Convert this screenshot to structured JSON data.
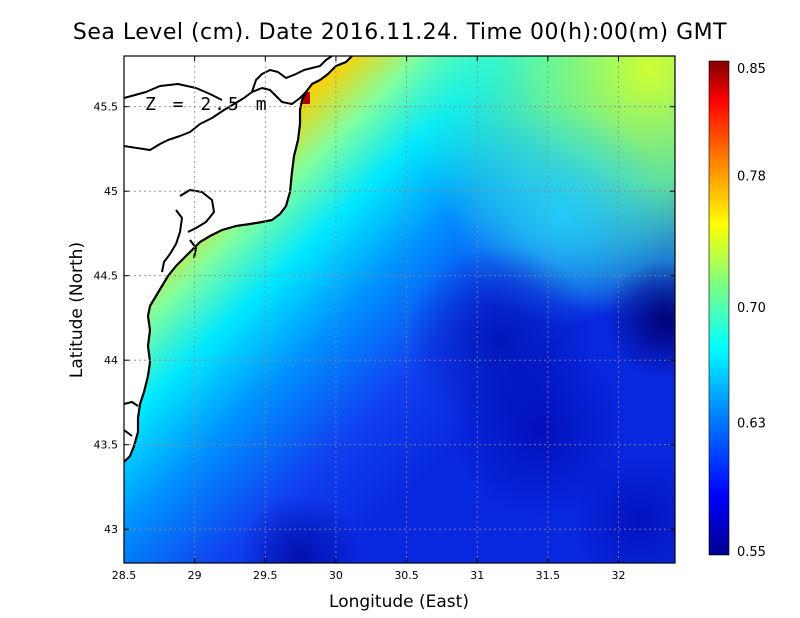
{
  "map": {
    "title": "Sea Level (cm). Date 2016.11.24. Time 00(h):00(m) GMT",
    "depth_label": "Z = 2.5 m",
    "x_axis_label": "Longitude (East)",
    "y_axis_label": "Latitude (North)",
    "lon_range": [
      28.5,
      32.4
    ],
    "lat_range": [
      42.8,
      45.8
    ],
    "lon_ticks": [
      "28.5",
      "29",
      "29.5",
      "30",
      "30.5",
      "31",
      "31.5",
      "32"
    ],
    "lat_ticks": [
      "43",
      "43.5",
      "44",
      "44.5",
      "45",
      "45.5"
    ],
    "colorbar": {
      "ticks": [
        "0.85",
        "0.78",
        "0.70",
        "0.63",
        "0.55"
      ],
      "range": [
        0.55,
        0.85
      ],
      "colors": [
        "#00008b",
        "#0000ff",
        "#0080ff",
        "#00ffff",
        "#80ff80",
        "#ffff00",
        "#ff8000",
        "#ff0000",
        "#800000"
      ]
    }
  }
}
